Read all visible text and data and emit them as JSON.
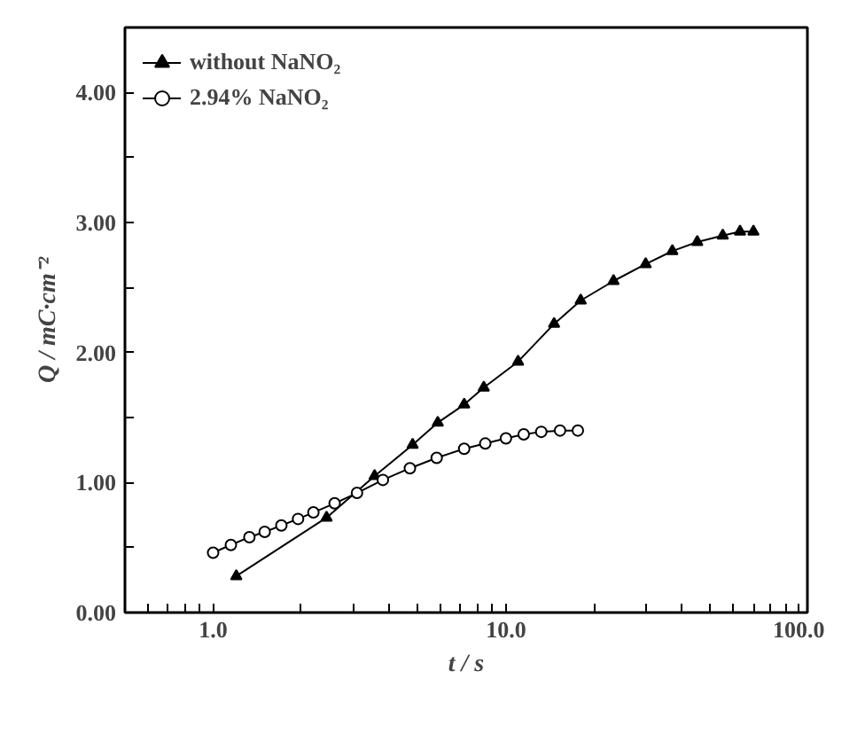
{
  "chart_data": {
    "type": "line",
    "xlabel": "t / s",
    "ylabel": "Q / mC·cm⁻²",
    "log": "x",
    "legend": "top left",
    "grid": false,
    "xlim": [
      0.5,
      107
    ],
    "ylim": [
      0,
      4.5
    ],
    "xticks": [
      {
        "value": 0.6,
        "label": null
      },
      {
        "value": 0.7,
        "label": null
      },
      {
        "value": 0.8,
        "label": null
      },
      {
        "value": 0.9,
        "label": null
      },
      {
        "value": 1,
        "label": "1.0"
      },
      {
        "value": 2,
        "label": null
      },
      {
        "value": 3,
        "label": null
      },
      {
        "value": 4,
        "label": null
      },
      {
        "value": 5,
        "label": null
      },
      {
        "value": 6,
        "label": null
      },
      {
        "value": 7,
        "label": null
      },
      {
        "value": 8,
        "label": null
      },
      {
        "value": 9,
        "label": null
      },
      {
        "value": 10,
        "label": "10.0"
      },
      {
        "value": 20,
        "label": null
      },
      {
        "value": 30,
        "label": null
      },
      {
        "value": 40,
        "label": null
      },
      {
        "value": 50,
        "label": null
      },
      {
        "value": 60,
        "label": null
      },
      {
        "value": 70,
        "label": null
      },
      {
        "value": 80,
        "label": null
      },
      {
        "value": 90,
        "label": null
      },
      {
        "value": 100,
        "label": "100.0"
      }
    ],
    "yticks": [
      {
        "value": 0,
        "label": "0.00"
      },
      {
        "value": 0.5,
        "label": null
      },
      {
        "value": 1,
        "label": "1.00"
      },
      {
        "value": 1.5,
        "label": null
      },
      {
        "value": 2,
        "label": "2.00"
      },
      {
        "value": 2.5,
        "label": null
      },
      {
        "value": 3,
        "label": "3.00"
      },
      {
        "value": 3.5,
        "label": null
      },
      {
        "value": 4,
        "label": "4.00"
      }
    ],
    "series": [
      {
        "name": "without NaNO₂",
        "color": "#000000",
        "marker": "triangle",
        "x": [
          1.2,
          2.44,
          3.56,
          4.8,
          5.85,
          7.2,
          8.4,
          11,
          14.6,
          18,
          23.3,
          30,
          37,
          45,
          55,
          63,
          70
        ],
        "values": [
          0.28,
          0.73,
          1.05,
          1.29,
          1.46,
          1.6,
          1.73,
          1.93,
          2.22,
          2.4,
          2.55,
          2.68,
          2.78,
          2.85,
          2.9,
          2.93,
          2.93
        ]
      },
      {
        "name": "2.94% NaNO₂",
        "color": "#000000",
        "marker": "circle",
        "x": [
          1.0,
          1.15,
          1.33,
          1.5,
          1.71,
          1.95,
          2.2,
          2.6,
          3.1,
          3.8,
          4.7,
          5.8,
          7.2,
          8.5,
          10,
          11.5,
          13.2,
          15.3,
          17.6
        ],
        "values": [
          0.46,
          0.52,
          0.58,
          0.62,
          0.67,
          0.72,
          0.77,
          0.84,
          0.92,
          1.02,
          1.11,
          1.19,
          1.26,
          1.3,
          1.34,
          1.37,
          1.39,
          1.4,
          1.4
        ]
      }
    ]
  }
}
